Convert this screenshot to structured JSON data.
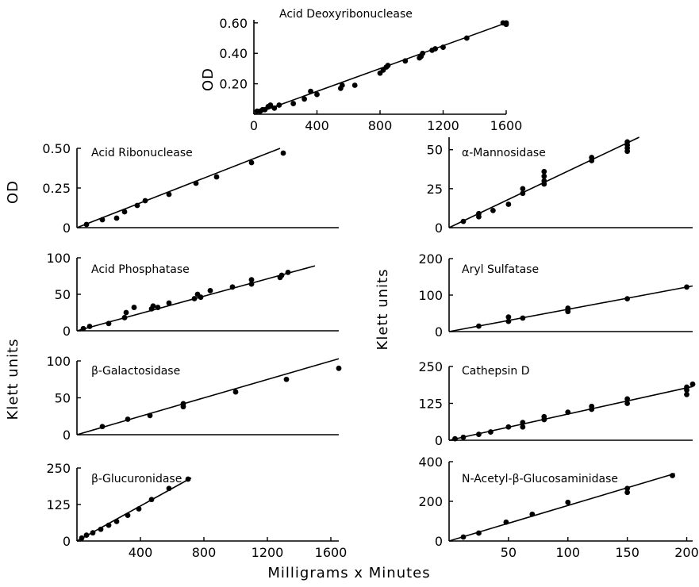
{
  "figure": {
    "xlabel": "Milligrams x Minutes",
    "ylabel_od_top": "OD",
    "ylabel_od_left": "OD",
    "ylabel_klett_left": "Klett units",
    "ylabel_klett_right": "Klett units"
  },
  "chart_data": [
    {
      "id": "acid-deoxyribonuclease",
      "type": "scatter",
      "title": "Acid Deoxyribonuclease",
      "ylabel": "OD",
      "xlim": [
        0,
        1600
      ],
      "ylim": [
        0,
        0.62
      ],
      "x_ticks": [
        "0",
        "400",
        "800",
        "1200",
        "1600"
      ],
      "x_tick_values": [
        0,
        400,
        800,
        1200,
        1600
      ],
      "y_ticks": [
        "0.20",
        "0.40",
        "0.60"
      ],
      "y_tick_values": [
        0.2,
        0.4,
        0.6
      ],
      "points": [
        [
          20,
          0.02
        ],
        [
          40,
          0.02
        ],
        [
          55,
          0.03
        ],
        [
          70,
          0.03
        ],
        [
          90,
          0.05
        ],
        [
          105,
          0.06
        ],
        [
          130,
          0.04
        ],
        [
          160,
          0.06
        ],
        [
          250,
          0.07
        ],
        [
          320,
          0.1
        ],
        [
          360,
          0.15
        ],
        [
          400,
          0.13
        ],
        [
          550,
          0.17
        ],
        [
          560,
          0.19
        ],
        [
          640,
          0.19
        ],
        [
          800,
          0.27
        ],
        [
          820,
          0.29
        ],
        [
          840,
          0.31
        ],
        [
          850,
          0.32
        ],
        [
          960,
          0.35
        ],
        [
          1050,
          0.37
        ],
        [
          1060,
          0.38
        ],
        [
          1070,
          0.4
        ],
        [
          1130,
          0.42
        ],
        [
          1150,
          0.43
        ],
        [
          1200,
          0.44
        ],
        [
          1350,
          0.5
        ],
        [
          1580,
          0.6
        ],
        [
          1600,
          0.59
        ],
        [
          1600,
          0.6
        ]
      ],
      "fit": [
        [
          0,
          0.0
        ],
        [
          1600,
          0.6
        ]
      ]
    },
    {
      "id": "acid-ribonuclease",
      "type": "scatter",
      "title": "Acid Ribonuclease",
      "ylabel": "OD",
      "xlim": [
        0,
        1650
      ],
      "ylim": [
        0,
        0.5
      ],
      "x_ticks": [],
      "x_tick_values": [],
      "y_ticks": [
        "0",
        "0.25",
        "0.50"
      ],
      "y_tick_values": [
        0,
        0.25,
        0.5
      ],
      "points": [
        [
          60,
          0.02
        ],
        [
          160,
          0.05
        ],
        [
          250,
          0.06
        ],
        [
          300,
          0.1
        ],
        [
          380,
          0.14
        ],
        [
          430,
          0.17
        ],
        [
          580,
          0.21
        ],
        [
          750,
          0.28
        ],
        [
          880,
          0.32
        ],
        [
          1100,
          0.41
        ],
        [
          1300,
          0.47
        ]
      ],
      "fit": [
        [
          0,
          0.0
        ],
        [
          1280,
          0.5
        ]
      ]
    },
    {
      "id": "acid-phosphatase",
      "type": "scatter",
      "title": "Acid Phosphatase",
      "xlim": [
        0,
        1650
      ],
      "ylim": [
        0,
        100
      ],
      "x_ticks": [],
      "x_tick_values": [],
      "y_ticks": [
        "0",
        "50",
        "100"
      ],
      "y_tick_values": [
        0,
        50,
        100
      ],
      "points": [
        [
          40,
          3
        ],
        [
          80,
          6
        ],
        [
          200,
          10
        ],
        [
          300,
          18
        ],
        [
          310,
          25
        ],
        [
          360,
          32
        ],
        [
          470,
          30
        ],
        [
          480,
          34
        ],
        [
          510,
          32
        ],
        [
          580,
          38
        ],
        [
          740,
          44
        ],
        [
          760,
          50
        ],
        [
          780,
          46
        ],
        [
          840,
          55
        ],
        [
          980,
          60
        ],
        [
          1100,
          64
        ],
        [
          1100,
          70
        ],
        [
          1280,
          73
        ],
        [
          1290,
          76
        ],
        [
          1330,
          80
        ]
      ],
      "fit": [
        [
          0,
          0
        ],
        [
          1500,
          89
        ]
      ]
    },
    {
      "id": "beta-galactosidase",
      "type": "scatter",
      "title": "β-Galactosidase",
      "xlim": [
        0,
        1650
      ],
      "ylim": [
        0,
        100
      ],
      "x_ticks": [],
      "x_tick_values": [],
      "y_ticks": [
        "0",
        "50",
        "100"
      ],
      "y_tick_values": [
        0,
        50,
        100
      ],
      "points": [
        [
          160,
          11
        ],
        [
          320,
          21
        ],
        [
          460,
          26
        ],
        [
          670,
          38
        ],
        [
          670,
          42
        ],
        [
          1000,
          58
        ],
        [
          1320,
          75
        ],
        [
          1650,
          90
        ]
      ],
      "fit": [
        [
          0,
          0
        ],
        [
          1650,
          103
        ]
      ]
    },
    {
      "id": "beta-glucuronidase",
      "type": "scatter",
      "title": "β-Glucuronidase",
      "xlim": [
        0,
        1650
      ],
      "ylim": [
        0,
        250
      ],
      "x_ticks": [
        "400",
        "800",
        "1200",
        "1600"
      ],
      "x_tick_values": [
        400,
        800,
        1200,
        1600
      ],
      "y_ticks": [
        "0",
        "125",
        "250"
      ],
      "y_tick_values": [
        0,
        125,
        250
      ],
      "points": [
        [
          30,
          10
        ],
        [
          60,
          20
        ],
        [
          100,
          28
        ],
        [
          150,
          40
        ],
        [
          200,
          54
        ],
        [
          250,
          67
        ],
        [
          320,
          88
        ],
        [
          390,
          110
        ],
        [
          470,
          142
        ],
        [
          580,
          180
        ],
        [
          700,
          212
        ]
      ],
      "fit": [
        [
          0,
          0
        ],
        [
          720,
          216
        ]
      ]
    },
    {
      "id": "alpha-mannosidase",
      "type": "scatter",
      "title": "α-Mannosidase",
      "xlim": [
        0,
        205
      ],
      "ylim": [
        0,
        58
      ],
      "x_ticks": [],
      "x_tick_values": [],
      "y_ticks": [
        "0",
        "25",
        "50"
      ],
      "y_tick_values": [
        0,
        25,
        50
      ],
      "points": [
        [
          12,
          4
        ],
        [
          25,
          7
        ],
        [
          25,
          9
        ],
        [
          37,
          11
        ],
        [
          50,
          15
        ],
        [
          62,
          22
        ],
        [
          62,
          25
        ],
        [
          80,
          28
        ],
        [
          80,
          30
        ],
        [
          80,
          33
        ],
        [
          80,
          36
        ],
        [
          120,
          43
        ],
        [
          120,
          45
        ],
        [
          150,
          49
        ],
        [
          150,
          51
        ],
        [
          150,
          53
        ],
        [
          150,
          55
        ]
      ],
      "fit": [
        [
          0,
          0
        ],
        [
          160,
          58
        ]
      ]
    },
    {
      "id": "aryl-sulfatase",
      "type": "scatter",
      "title": "Aryl Sulfatase",
      "xlim": [
        0,
        205
      ],
      "ylim": [
        0,
        200
      ],
      "x_ticks": [],
      "x_tick_values": [],
      "y_ticks": [
        "0",
        "100",
        "200"
      ],
      "y_tick_values": [
        0,
        100,
        200
      ],
      "points": [
        [
          25,
          15
        ],
        [
          50,
          28
        ],
        [
          50,
          40
        ],
        [
          62,
          37
        ],
        [
          100,
          55
        ],
        [
          100,
          60
        ],
        [
          100,
          64
        ],
        [
          150,
          90
        ],
        [
          200,
          122
        ]
      ],
      "fit": [
        [
          0,
          0
        ],
        [
          205,
          125
        ]
      ]
    },
    {
      "id": "cathepsin-d",
      "type": "scatter",
      "title": "Cathepsin D",
      "xlim": [
        0,
        205
      ],
      "ylim": [
        0,
        250
      ],
      "x_ticks": [],
      "x_tick_values": [],
      "y_ticks": [
        "0",
        "125",
        "250"
      ],
      "y_tick_values": [
        0,
        125,
        250
      ],
      "points": [
        [
          5,
          5
        ],
        [
          12,
          10
        ],
        [
          25,
          20
        ],
        [
          35,
          28
        ],
        [
          50,
          45
        ],
        [
          62,
          45
        ],
        [
          62,
          60
        ],
        [
          80,
          70
        ],
        [
          80,
          80
        ],
        [
          100,
          95
        ],
        [
          120,
          105
        ],
        [
          120,
          115
        ],
        [
          150,
          125
        ],
        [
          150,
          140
        ],
        [
          200,
          155
        ],
        [
          200,
          170
        ],
        [
          200,
          180
        ],
        [
          205,
          190
        ]
      ],
      "fit": [
        [
          0,
          0
        ],
        [
          205,
          182
        ]
      ]
    },
    {
      "id": "n-acetyl-beta-glucosaminidase",
      "type": "scatter",
      "title": "N-Acetyl-β-Glucosaminidase",
      "xlim": [
        0,
        205
      ],
      "ylim": [
        0,
        400
      ],
      "x_ticks": [
        "50",
        "100",
        "150",
        "200"
      ],
      "x_tick_values": [
        50,
        100,
        150,
        200
      ],
      "y_ticks": [
        "0",
        "200",
        "400"
      ],
      "y_tick_values": [
        0,
        200,
        400
      ],
      "points": [
        [
          12,
          20
        ],
        [
          25,
          40
        ],
        [
          48,
          95
        ],
        [
          70,
          135
        ],
        [
          100,
          195
        ],
        [
          150,
          245
        ],
        [
          150,
          265
        ],
        [
          188,
          330
        ]
      ],
      "fit": [
        [
          0,
          0
        ],
        [
          190,
          340
        ]
      ]
    }
  ]
}
